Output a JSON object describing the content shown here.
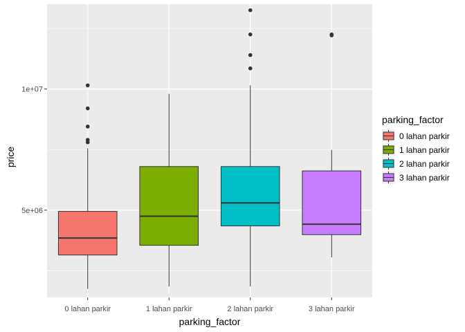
{
  "chart_data": {
    "type": "box",
    "xlabel": "parking_factor",
    "ylabel": "price",
    "ylim": [
      1400000,
      13500000
    ],
    "y_ticks": [
      {
        "value": 5000000,
        "label": "5e+06"
      },
      {
        "value": 10000000,
        "label": "1e+07"
      }
    ],
    "grid": true,
    "legend_position": "right",
    "legend_title": "parking_factor",
    "categories": [
      "0 lahan parkir",
      "1 lahan parkir",
      "2 lahan parkir",
      "3 lahan parkir"
    ],
    "colors": [
      "#F8766D",
      "#7CAE00",
      "#00BFC4",
      "#C77CFF"
    ],
    "boxes": [
      {
        "category": "0 lahan parkir",
        "whisker_low": 1750000,
        "q1": 3150000,
        "median": 3850000,
        "q3": 4950000,
        "whisker_high": 7550000,
        "outliers": [
          7800000,
          7900000,
          8450000,
          9200000,
          10150000
        ]
      },
      {
        "category": "1 lahan parkir",
        "whisker_low": 1850000,
        "q1": 3550000,
        "median": 4750000,
        "q3": 6800000,
        "whisker_high": 9800000,
        "outliers": []
      },
      {
        "category": "2 lahan parkir",
        "whisker_low": 1850000,
        "q1": 4350000,
        "median": 5300000,
        "q3": 6800000,
        "whisker_high": 10150000,
        "outliers": [
          10850000,
          11400000,
          12250000,
          13250000
        ]
      },
      {
        "category": "3 lahan parkir",
        "whisker_low": 3050000,
        "q1": 3990000,
        "median": 4420000,
        "q3": 6620000,
        "whisker_high": 7490000,
        "outliers": [
          12250000,
          12210000
        ]
      }
    ]
  }
}
